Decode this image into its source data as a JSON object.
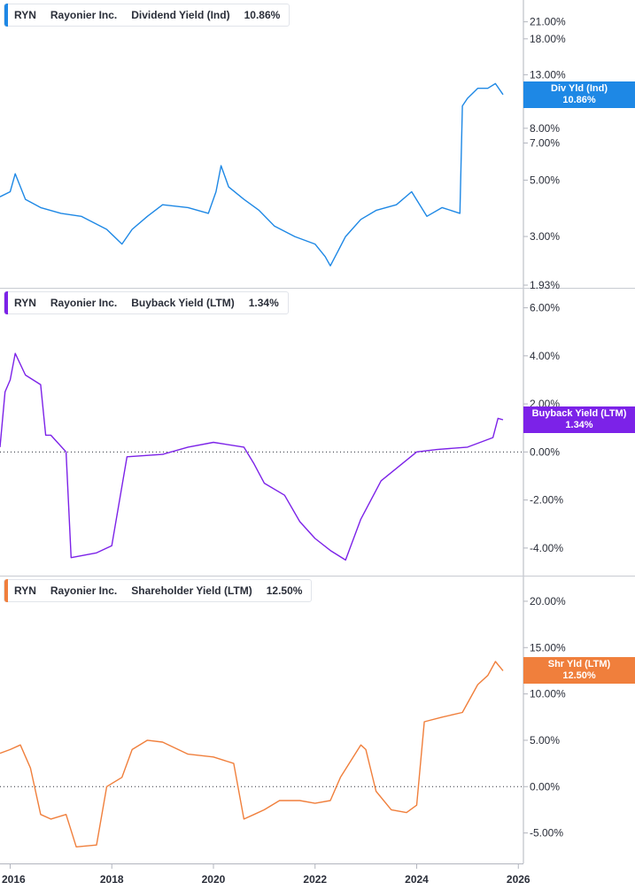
{
  "ticker": "RYN",
  "company": "Rayonier Inc.",
  "chart_data": [
    {
      "type": "line",
      "title": "Dividend Yield (Ind)",
      "last_value_label": "10.86%",
      "tag_label": "Div Yld (Ind)",
      "color": "#1e88e5",
      "scale": "log",
      "ylim": [
        1.93,
        24
      ],
      "yticks": [
        "21.00%",
        "18.00%",
        "13.00%",
        "8.00%",
        "7.00%",
        "5.00%",
        "3.00%",
        "1.93%"
      ],
      "ytick_values": [
        21,
        18,
        13,
        8,
        7,
        5,
        3,
        1.93
      ],
      "series": [
        {
          "x": [
            2015.8,
            2016.0,
            2016.1,
            2016.3,
            2016.6,
            2017.0,
            2017.4,
            2017.9,
            2018.2,
            2018.4,
            2018.7,
            2019.0,
            2019.5,
            2019.9,
            2020.05,
            2020.15,
            2020.3,
            2020.6,
            2020.9,
            2021.2,
            2021.6,
            2022.0,
            2022.2,
            2022.3,
            2022.6,
            2022.9,
            2023.2,
            2023.6,
            2023.9,
            2024.2,
            2024.5,
            2024.85,
            2024.9,
            2025.0,
            2025.2,
            2025.4,
            2025.55,
            2025.7
          ],
          "values": [
            4.3,
            4.5,
            5.3,
            4.2,
            3.9,
            3.7,
            3.6,
            3.2,
            2.8,
            3.2,
            3.6,
            4.0,
            3.9,
            3.7,
            4.5,
            5.7,
            4.7,
            4.2,
            3.8,
            3.3,
            3.0,
            2.8,
            2.5,
            2.3,
            3.0,
            3.5,
            3.8,
            4.0,
            4.5,
            3.6,
            3.9,
            3.7,
            9.8,
            10.5,
            11.5,
            11.5,
            12.0,
            10.86
          ]
        }
      ]
    },
    {
      "type": "line",
      "title": "Buyback Yield (LTM)",
      "last_value_label": "1.34%",
      "tag_label": "Buyback Yield (LTM)",
      "color": "#7c22e8",
      "scale": "linear",
      "ylim": [
        -5,
        6.5
      ],
      "yticks": [
        "6.00%",
        "4.00%",
        "2.00%",
        "0.00%",
        "-2.00%",
        "-4.00%"
      ],
      "ytick_values": [
        6,
        4,
        2,
        0,
        -2,
        -4
      ],
      "series": [
        {
          "x": [
            2015.8,
            2015.9,
            2016.0,
            2016.1,
            2016.3,
            2016.6,
            2016.7,
            2016.8,
            2017.1,
            2017.2,
            2017.7,
            2018.0,
            2018.3,
            2019.0,
            2019.5,
            2020.0,
            2020.6,
            2020.8,
            2021.0,
            2021.4,
            2021.7,
            2022.0,
            2022.3,
            2022.6,
            2022.9,
            2023.3,
            2024.0,
            2024.4,
            2025.0,
            2025.5,
            2025.6,
            2025.7
          ],
          "values": [
            0.2,
            2.5,
            3.0,
            4.1,
            3.2,
            2.8,
            0.7,
            0.7,
            0.0,
            -4.4,
            -4.2,
            -3.9,
            -0.2,
            -0.1,
            0.2,
            0.4,
            0.2,
            -0.5,
            -1.3,
            -1.8,
            -2.9,
            -3.6,
            -4.1,
            -4.5,
            -2.8,
            -1.2,
            0.0,
            0.1,
            0.2,
            0.6,
            1.4,
            1.34
          ]
        }
      ]
    },
    {
      "type": "line",
      "title": "Shareholder Yield (LTM)",
      "last_value_label": "12.50%",
      "tag_label": "Shr Yld (LTM)",
      "color": "#f07f3c",
      "scale": "linear",
      "ylim": [
        -8,
        22
      ],
      "yticks": [
        "20.00%",
        "15.00%",
        "10.00%",
        "5.00%",
        "0.00%",
        "-5.00%"
      ],
      "ytick_values": [
        20,
        15,
        10,
        5,
        0,
        -5
      ],
      "series": [
        {
          "x": [
            2015.8,
            2016.0,
            2016.2,
            2016.4,
            2016.6,
            2016.8,
            2017.1,
            2017.3,
            2017.7,
            2017.9,
            2018.2,
            2018.4,
            2018.7,
            2019.0,
            2019.5,
            2020.0,
            2020.4,
            2020.6,
            2020.8,
            2021.0,
            2021.3,
            2021.7,
            2022.0,
            2022.3,
            2022.5,
            2022.9,
            2023.0,
            2023.2,
            2023.5,
            2023.8,
            2024.0,
            2024.15,
            2024.5,
            2024.9,
            2025.2,
            2025.4,
            2025.55,
            2025.7
          ],
          "values": [
            3.6,
            4.0,
            4.5,
            2.0,
            -3.0,
            -3.5,
            -3.0,
            -6.5,
            -6.3,
            0.0,
            1.0,
            4.0,
            5.0,
            4.8,
            3.5,
            3.2,
            2.5,
            -3.5,
            -3.0,
            -2.5,
            -1.5,
            -1.5,
            -1.8,
            -1.5,
            1.0,
            4.5,
            4.0,
            -0.5,
            -2.5,
            -2.8,
            -2.0,
            7.0,
            7.5,
            8.0,
            11.0,
            12.0,
            13.5,
            12.5
          ]
        }
      ]
    }
  ],
  "x_axis": {
    "xlim": [
      2015.8,
      2026.1
    ],
    "ticks": [
      "2016",
      "2018",
      "2020",
      "2022",
      "2024",
      "2026"
    ],
    "tick_values": [
      2016,
      2018,
      2020,
      2022,
      2024,
      2026
    ]
  }
}
